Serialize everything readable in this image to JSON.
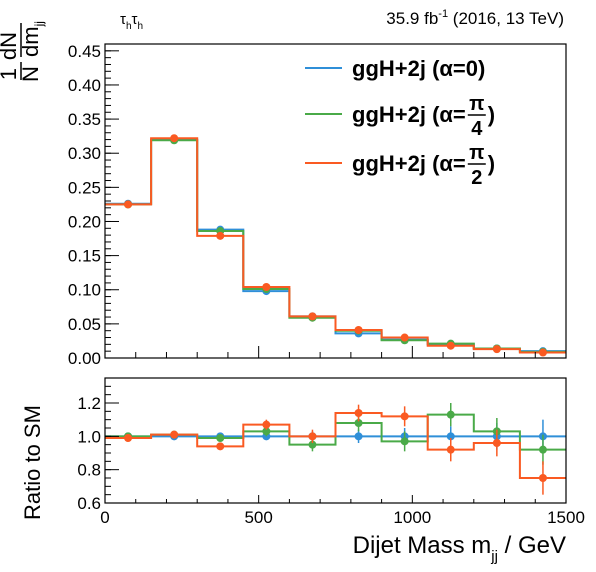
{
  "header": {
    "channel_base": "τ",
    "channel_sub": "h",
    "lumi_value": "35.9 fb",
    "lumi_sup": "-1",
    "lumi_rest": " (2016, 13 TeV)"
  },
  "axes": {
    "upper_ylabel_num": "1",
    "upper_ylabel_dN": "dN",
    "upper_ylabel_den": "N",
    "upper_ylabel_dm": "dm",
    "upper_ylabel_sub": "jj",
    "lower_ylabel": "Ratio to SM",
    "xlabel_main": "Dijet Mass m",
    "xlabel_sub": "jj",
    "xlabel_unit": " / GeV"
  },
  "legend": [
    {
      "prefix": "ggH+2j (α=",
      "value": "0",
      "suffix": ")",
      "color": "#2f8fd8"
    },
    {
      "prefix": "ggH+2j (α=",
      "num": "π",
      "den": "4",
      "suffix": ")",
      "color": "#4aaa48"
    },
    {
      "prefix": "ggH+2j (α=",
      "num": "π",
      "den": "2",
      "suffix": ")",
      "color": "#fa5a22"
    }
  ],
  "chart_data": [
    {
      "type": "line",
      "style": "step-histogram with markers",
      "bin_edges": [
        0,
        150,
        300,
        450,
        600,
        750,
        900,
        1050,
        1200,
        1350,
        1500
      ],
      "x": [
        75,
        225,
        375,
        525,
        675,
        825,
        975,
        1125,
        1275,
        1425
      ],
      "xlim": [
        0,
        1500
      ],
      "ylim": [
        0,
        0.46
      ],
      "yticks": [
        0.0,
        0.05,
        0.1,
        0.15,
        0.2,
        0.25,
        0.3,
        0.35,
        0.4,
        0.45
      ],
      "ytick_labels": [
        "0.00",
        "0.05",
        "0.10",
        "0.15",
        "0.20",
        "0.25",
        "0.30",
        "0.35",
        "0.40",
        "0.45"
      ],
      "series": [
        {
          "name": "ggH+2j (α=0)",
          "color": "#2f8fd8",
          "values": [
            0.226,
            0.32,
            0.188,
            0.098,
            0.061,
            0.036,
            0.027,
            0.02,
            0.014,
            0.01
          ]
        },
        {
          "name": "ggH+2j (α=π/4)",
          "color": "#4aaa48",
          "values": [
            0.225,
            0.319,
            0.186,
            0.101,
            0.059,
            0.04,
            0.026,
            0.021,
            0.014,
            0.009
          ]
        },
        {
          "name": "ggH+2j (α=π/2)",
          "color": "#fa5a22",
          "values": [
            0.225,
            0.322,
            0.179,
            0.104,
            0.061,
            0.041,
            0.03,
            0.018,
            0.013,
            0.008
          ]
        }
      ]
    },
    {
      "type": "line",
      "style": "step-histogram with error bars",
      "bin_edges": [
        0,
        150,
        300,
        450,
        600,
        750,
        900,
        1050,
        1200,
        1350,
        1500
      ],
      "x": [
        75,
        225,
        375,
        525,
        675,
        825,
        975,
        1125,
        1275,
        1425
      ],
      "xlim": [
        0,
        1500
      ],
      "ylim": [
        0.6,
        1.35
      ],
      "reference_line": 1.0,
      "yticks": [
        0.6,
        0.8,
        1.0,
        1.2
      ],
      "ytick_labels": [
        "0.6",
        "0.8",
        "1.0",
        "1.2"
      ],
      "xticks": [
        0,
        500,
        1000,
        1500
      ],
      "xtick_labels": [
        "0",
        "500",
        "1000",
        "1500"
      ],
      "series": [
        {
          "name": "ggH+2j (α=0)",
          "color": "#2f8fd8",
          "values": [
            1.0,
            1.0,
            1.0,
            1.0,
            1.0,
            1.0,
            1.0,
            1.0,
            1.0,
            1.0
          ],
          "errors": [
            0.01,
            0.01,
            0.02,
            0.02,
            0.03,
            0.04,
            0.05,
            0.06,
            0.08,
            0.1
          ]
        },
        {
          "name": "ggH+2j (α=π/4)",
          "color": "#4aaa48",
          "values": [
            1.0,
            1.01,
            0.99,
            1.03,
            0.95,
            1.08,
            0.97,
            1.13,
            1.03,
            0.92
          ],
          "errors": [
            0.01,
            0.01,
            0.02,
            0.03,
            0.04,
            0.05,
            0.06,
            0.07,
            0.08,
            0.09
          ]
        },
        {
          "name": "ggH+2j (α=π/2)",
          "color": "#fa5a22",
          "values": [
            0.99,
            1.01,
            0.94,
            1.07,
            1.0,
            1.14,
            1.12,
            0.92,
            0.96,
            0.75
          ],
          "errors": [
            0.01,
            0.01,
            0.02,
            0.03,
            0.04,
            0.05,
            0.06,
            0.07,
            0.08,
            0.1
          ]
        }
      ]
    }
  ]
}
